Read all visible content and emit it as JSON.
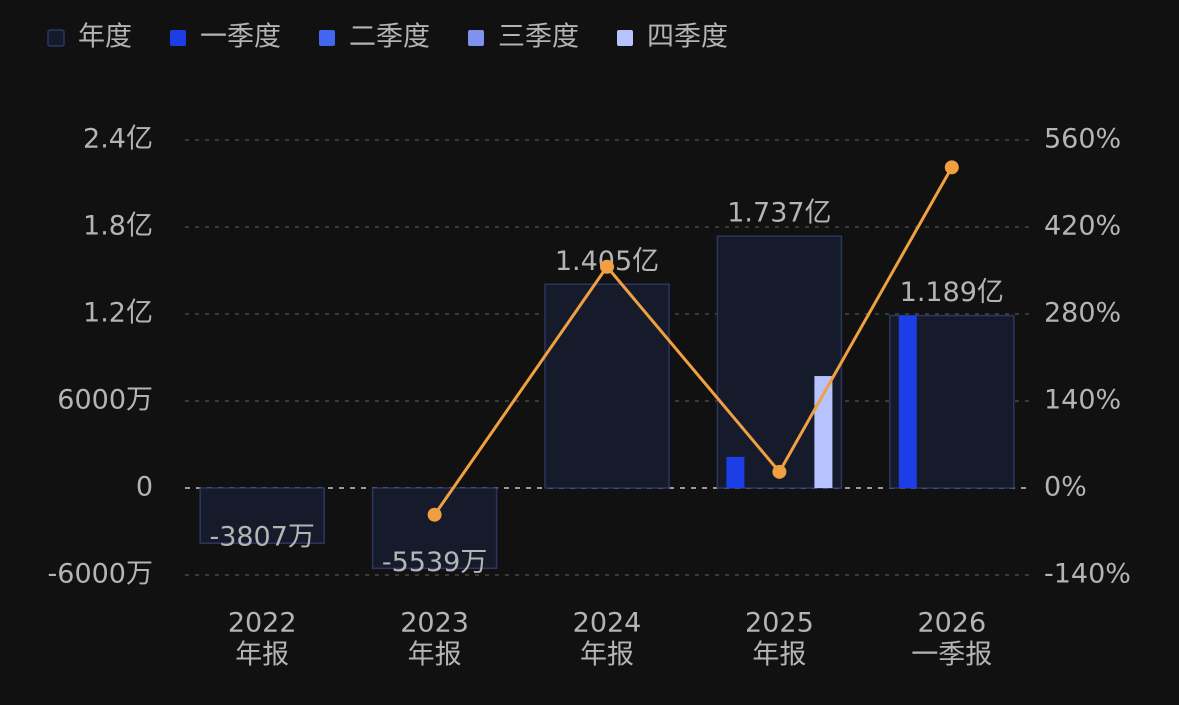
{
  "chart_data": {
    "type": "bar",
    "categories": [
      [
        "2022",
        "年报"
      ],
      [
        "2023",
        "年报"
      ],
      [
        "2024",
        "年报"
      ],
      [
        "2025",
        "年报"
      ],
      [
        "2026",
        "一季报"
      ]
    ],
    "series": [
      {
        "name": "年度",
        "color": "#161b2c",
        "border": "#2c3660",
        "values": [
          -38070000,
          -55390000,
          140500000,
          173700000,
          118900000
        ],
        "value_labels": [
          "-3807万",
          "-5539万",
          "1.405亿",
          "1.737亿",
          "1.189亿"
        ]
      },
      {
        "name": "一季度",
        "color": "#1b3ee6",
        "values": [
          null,
          null,
          null,
          21400000,
          118900000
        ]
      },
      {
        "name": "二季度",
        "color": "#4366f0",
        "values": [
          null,
          null,
          null,
          null,
          null
        ]
      },
      {
        "name": "三季度",
        "color": "#7d93ef",
        "values": [
          null,
          null,
          null,
          null,
          null
        ]
      },
      {
        "name": "四季度",
        "color": "#b7c3ff",
        "values": [
          null,
          null,
          null,
          77200000,
          null
        ]
      }
    ],
    "line": {
      "color": "#f0a040",
      "axis": "y2",
      "values": [
        null,
        -43,
        356,
        26,
        516
      ]
    },
    "ylim": [
      -60000000,
      240000000
    ],
    "yticks": [
      {
        "value": -60000000,
        "label": "-6000万"
      },
      0,
      {
        "value": 60000000,
        "label": "6000万"
      },
      {
        "value": 120000000,
        "label": "1.2亿"
      },
      {
        "value": 180000000,
        "label": "1.8亿"
      },
      {
        "value": 240000000,
        "label": "2.4亿"
      }
    ],
    "y2lim": [
      -140,
      560
    ],
    "y2ticks": [
      {
        "value": -140,
        "label": "-140%"
      },
      {
        "value": 0,
        "label": "0%"
      },
      {
        "value": 140,
        "label": "140%"
      },
      {
        "value": 280,
        "label": "280%"
      },
      {
        "value": 420,
        "label": "420%"
      },
      {
        "value": 560,
        "label": "560%"
      }
    ],
    "grid": true
  }
}
